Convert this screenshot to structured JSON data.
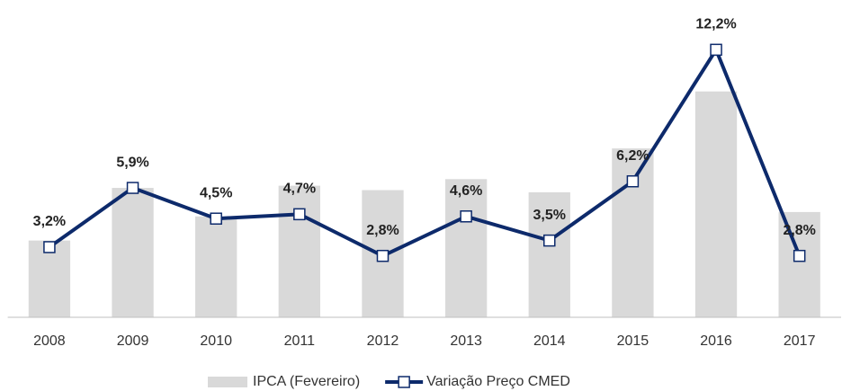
{
  "chart_data": {
    "type": "bar",
    "categories": [
      "2008",
      "2009",
      "2010",
      "2011",
      "2012",
      "2013",
      "2014",
      "2015",
      "2016",
      "2017"
    ],
    "series": [
      {
        "name": "IPCA (Fevereiro)",
        "type": "bar",
        "color": "#d9d9d9",
        "values": [
          3.5,
          5.9,
          4.6,
          6.0,
          5.8,
          6.3,
          5.7,
          7.7,
          10.3,
          4.8
        ]
      },
      {
        "name": "Variação Preço CMED",
        "type": "line",
        "color": "#0d2a6b",
        "values": [
          3.2,
          5.9,
          4.5,
          4.7,
          2.8,
          4.6,
          3.5,
          6.2,
          12.2,
          2.8
        ],
        "value_labels": [
          "3,2%",
          "5,9%",
          "4,5%",
          "4,7%",
          "2,8%",
          "4,6%",
          "3,5%",
          "6,2%",
          "12,2%",
          "2,8%"
        ]
      }
    ],
    "ylim": [
      0,
      14.1
    ]
  }
}
